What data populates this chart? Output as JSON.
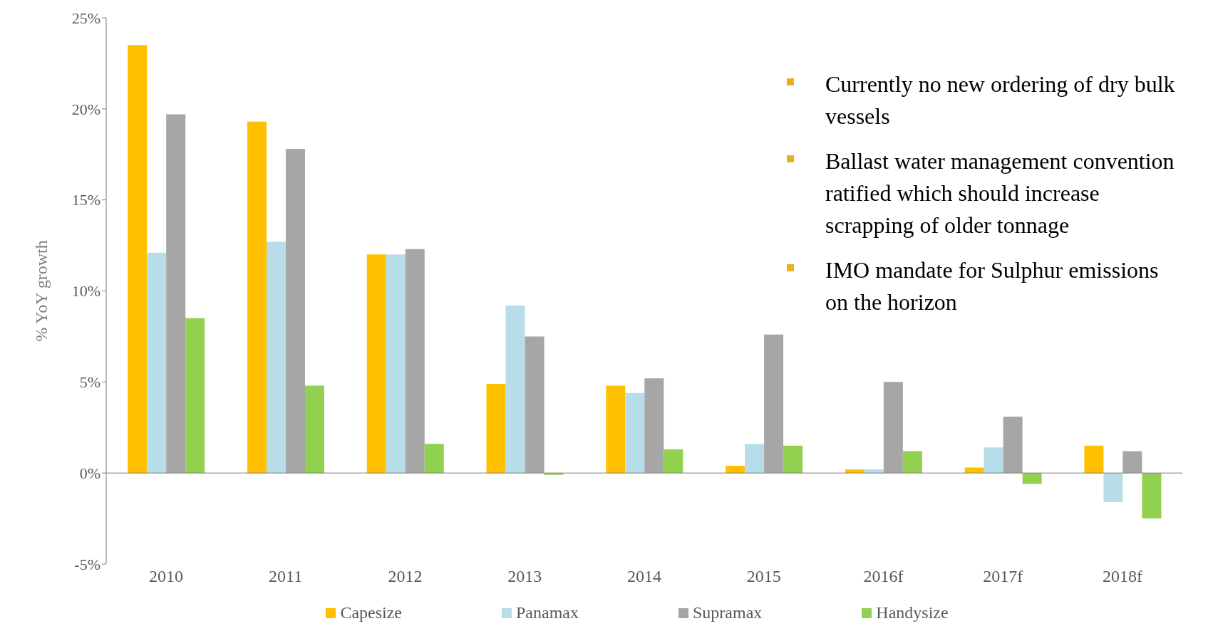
{
  "chart_data": {
    "type": "bar",
    "ylabel": "% YoY growth",
    "categories": [
      "2010",
      "2011",
      "2012",
      "2013",
      "2014",
      "2015",
      "2016f",
      "2017f",
      "2018f"
    ],
    "series": [
      {
        "name": "Capesize",
        "color": "#ffc000",
        "values": [
          23.5,
          19.3,
          12.0,
          4.9,
          4.8,
          0.4,
          0.2,
          0.3,
          1.5
        ]
      },
      {
        "name": "Panamax",
        "color": "#b7dee8",
        "values": [
          12.1,
          12.7,
          12.0,
          9.2,
          4.4,
          1.6,
          0.2,
          1.4,
          -1.6
        ]
      },
      {
        "name": "Supramax",
        "color": "#a6a6a6",
        "values": [
          19.7,
          17.8,
          12.3,
          7.5,
          5.2,
          7.6,
          5.0,
          3.1,
          1.2
        ]
      },
      {
        "name": "Handysize",
        "color": "#92d050",
        "values": [
          8.5,
          4.8,
          1.6,
          -0.1,
          1.3,
          1.5,
          1.2,
          -0.6,
          -2.5
        ]
      }
    ],
    "ylim": [
      -5,
      25
    ],
    "yticks": [
      {
        "value": -5,
        "label": "-5%"
      },
      {
        "value": 0,
        "label": "0%"
      },
      {
        "value": 5,
        "label": "5%"
      },
      {
        "value": 10,
        "label": "10%"
      },
      {
        "value": 15,
        "label": "15%"
      },
      {
        "value": 20,
        "label": "20%"
      },
      {
        "value": 25,
        "label": "25%"
      }
    ],
    "annotations": [
      "Currently no new ordering of dry bulk vessels",
      "Ballast water management convention ratified which should increase scrapping of older tonnage",
      "IMO mandate for Sulphur emissions on the horizon"
    ],
    "legend": "bottom"
  }
}
